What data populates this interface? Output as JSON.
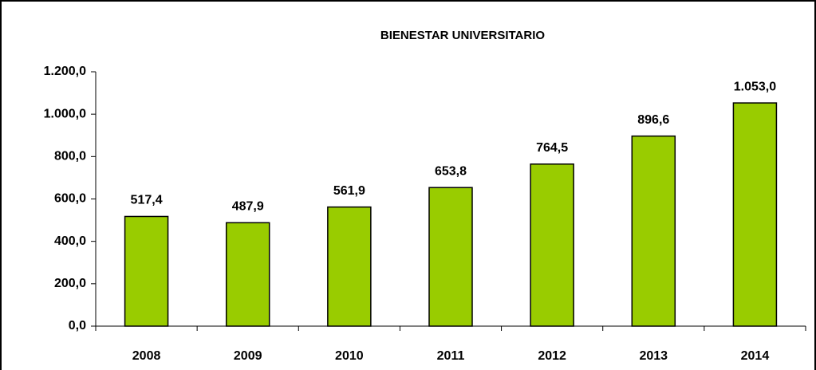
{
  "chart_data": {
    "type": "bar",
    "title": "BIENESTAR UNIVERSITARIO",
    "categories": [
      "2008",
      "2009",
      "2010",
      "2011",
      "2012",
      "2013",
      "2014"
    ],
    "values": [
      517.4,
      487.9,
      561.9,
      653.8,
      764.5,
      896.6,
      1053.0
    ],
    "value_labels": [
      "517,4",
      "487,9",
      "561,9",
      "653,8",
      "764,5",
      "896,6",
      "1.053,0"
    ],
    "color": "#99cc00",
    "ylim": [
      0,
      1200
    ],
    "yticks": [
      {
        "value": 0,
        "label": "0,0"
      },
      {
        "value": 200,
        "label": "200,0"
      },
      {
        "value": 400,
        "label": "400,0"
      },
      {
        "value": 600,
        "label": "600,0"
      },
      {
        "value": 800,
        "label": "800,0"
      },
      {
        "value": 1000,
        "label": "1.000,0"
      },
      {
        "value": 1200,
        "label": "1.200,0"
      }
    ],
    "grid": false
  }
}
